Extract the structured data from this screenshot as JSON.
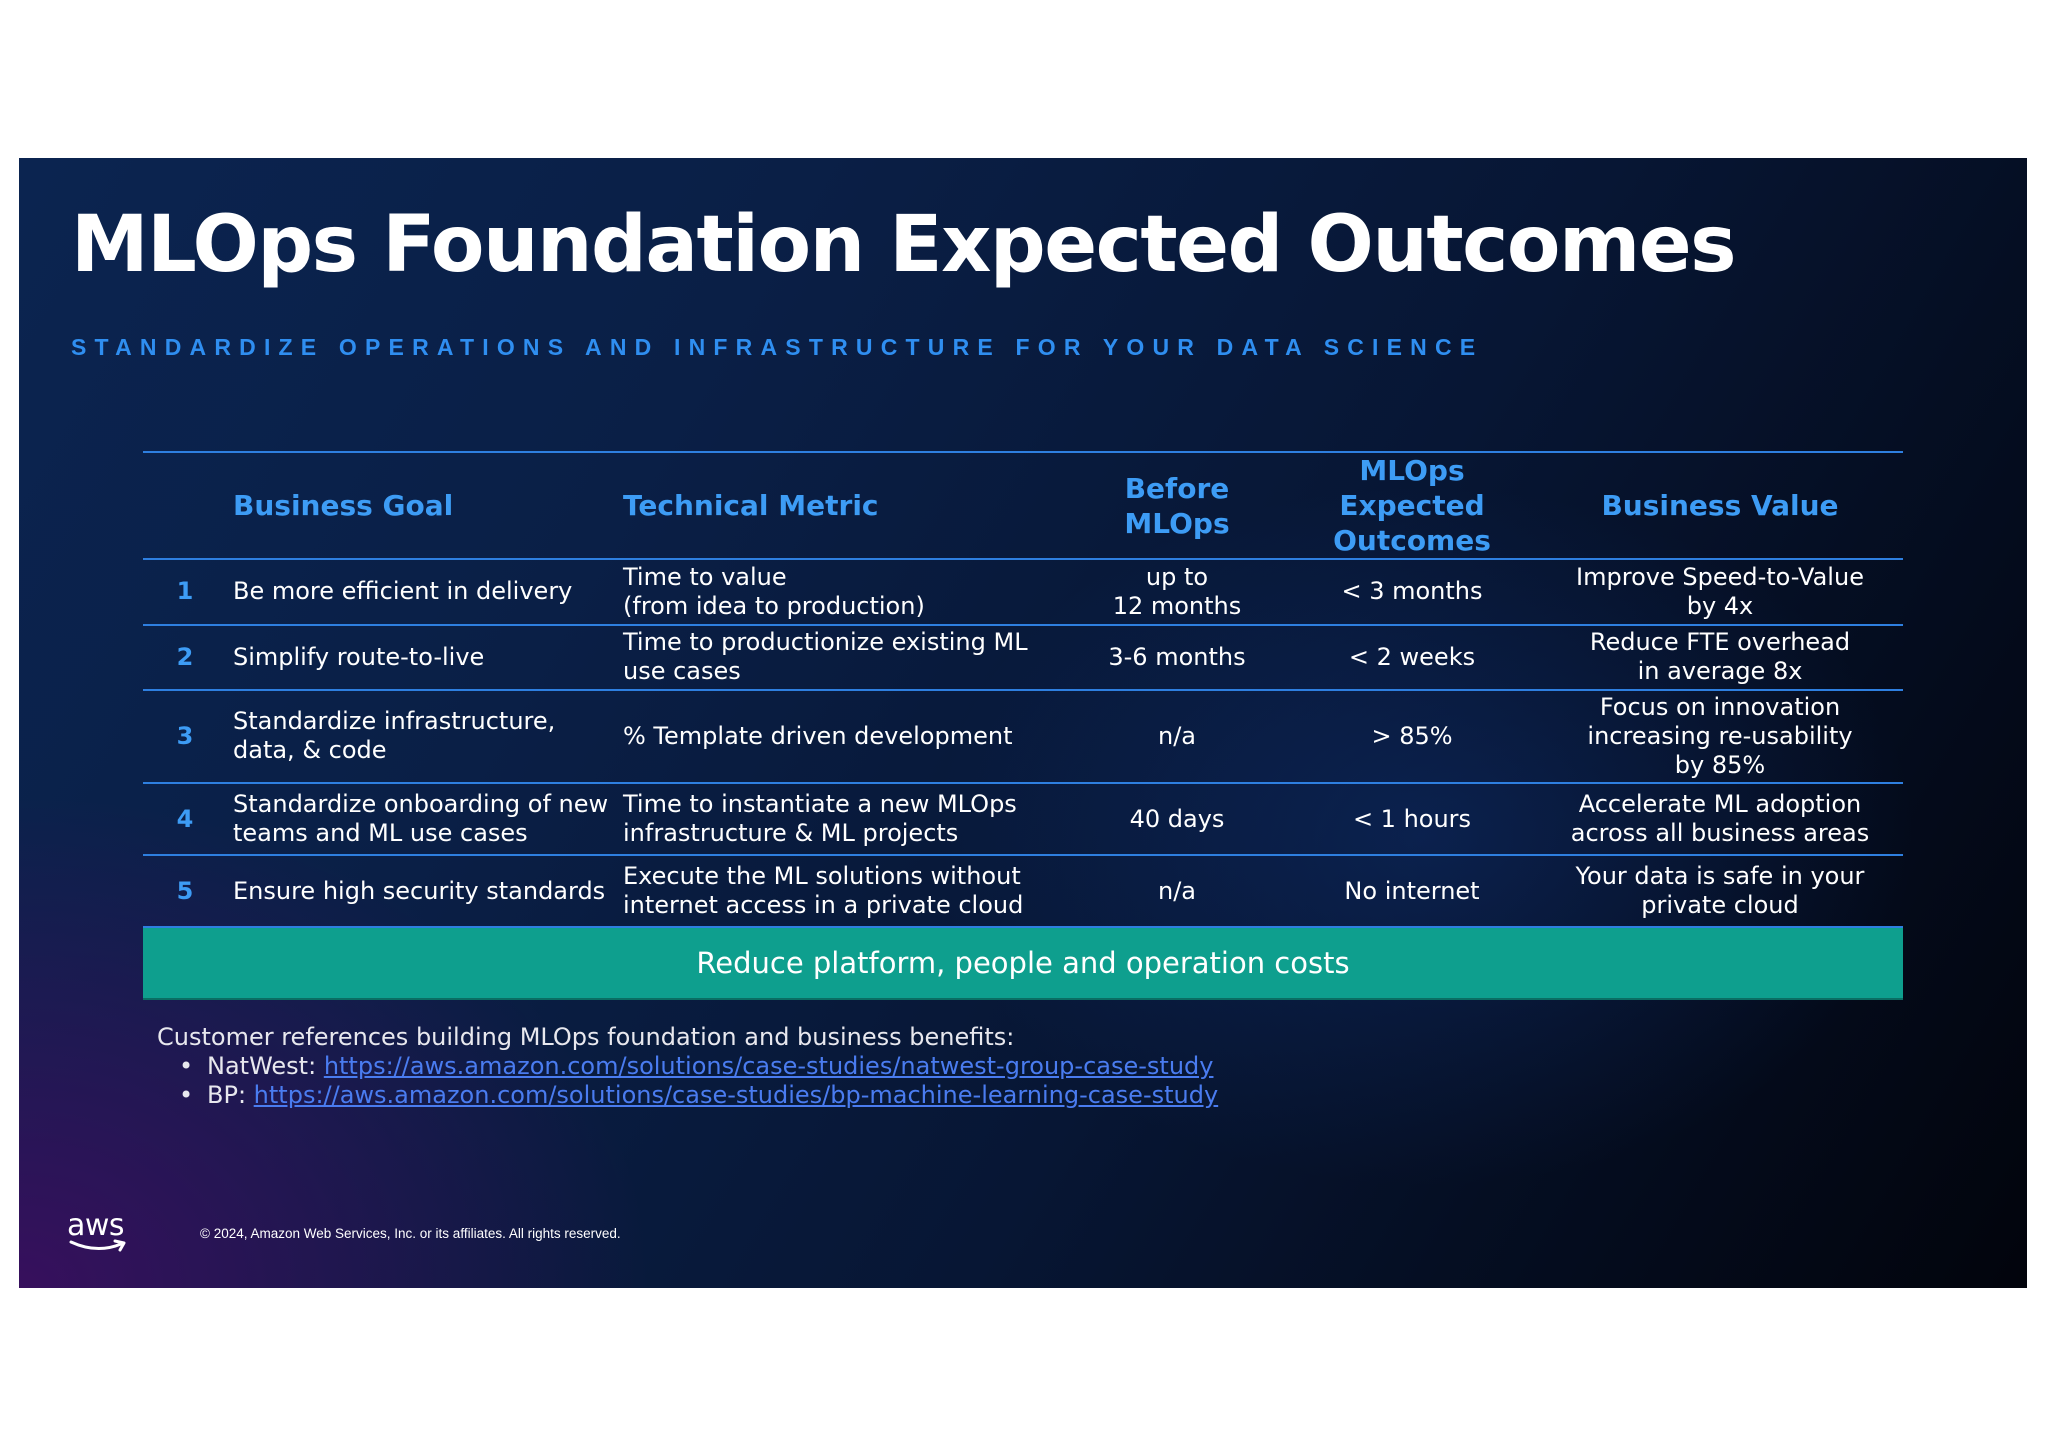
{
  "slide": {
    "title": "MLOps Foundation Expected Outcomes",
    "subtitle": "STANDARDIZE OPERATIONS AND INFRASTRUCTURE FOR YOUR DATA SCIENCE"
  },
  "table": {
    "headers": {
      "business_goal": "Business Goal",
      "technical_metric": "Technical Metric",
      "before": "Before MLOps",
      "expected": "MLOps Expected\nOutcomes",
      "value": "Business Value"
    },
    "rows": [
      {
        "num": "1",
        "goal": "Be more efficient in delivery",
        "metric": "Time to value\n(from idea to production)",
        "before": "up to\n12 months",
        "expected": "< 3 months",
        "value": "Improve Speed-to-Value\nby 4x"
      },
      {
        "num": "2",
        "goal": "Simplify route-to-live",
        "metric": "Time to productionize existing ML use cases",
        "before": "3-6 months",
        "expected": "< 2 weeks",
        "value": "Reduce FTE overhead\nin average 8x"
      },
      {
        "num": "3",
        "goal": "Standardize infrastructure, data, & code",
        "metric": "% Template driven development",
        "before": "n/a",
        "expected": "> 85%",
        "value": "Focus on innovation\nincreasing re-usability\nby 85%"
      },
      {
        "num": "4",
        "goal": "Standardize onboarding of new teams and ML use cases",
        "metric": "Time to instantiate a new MLOps infrastructure & ML projects",
        "before": "40 days",
        "expected": "< 1 hours",
        "value": "Accelerate ML adoption\nacross all business areas"
      },
      {
        "num": "5",
        "goal": "Ensure high security standards",
        "metric": "Execute the ML solutions without internet access in a private cloud",
        "before": "n/a",
        "expected": "No internet",
        "value": "Your data is safe in your\nprivate cloud"
      }
    ],
    "banner": "Reduce platform, people and operation costs"
  },
  "references": {
    "intro": "Customer references building MLOps foundation and business benefits:",
    "items": [
      {
        "label": "NatWest:",
        "link": "https://aws.amazon.com/solutions/case-studies/natwest-group-case-study"
      },
      {
        "label": "BP:",
        "link": "https://aws.amazon.com/solutions/case-studies/bp-machine-learning-case-study"
      }
    ]
  },
  "footer": {
    "logo_text": "aws",
    "copyright": "© 2024, Amazon Web Services, Inc. or its affiliates. All rights reserved."
  },
  "colors": {
    "accent_blue": "#3d9cf5",
    "banner_teal": "#0e9f8e",
    "link_blue": "#4a7cf0"
  }
}
